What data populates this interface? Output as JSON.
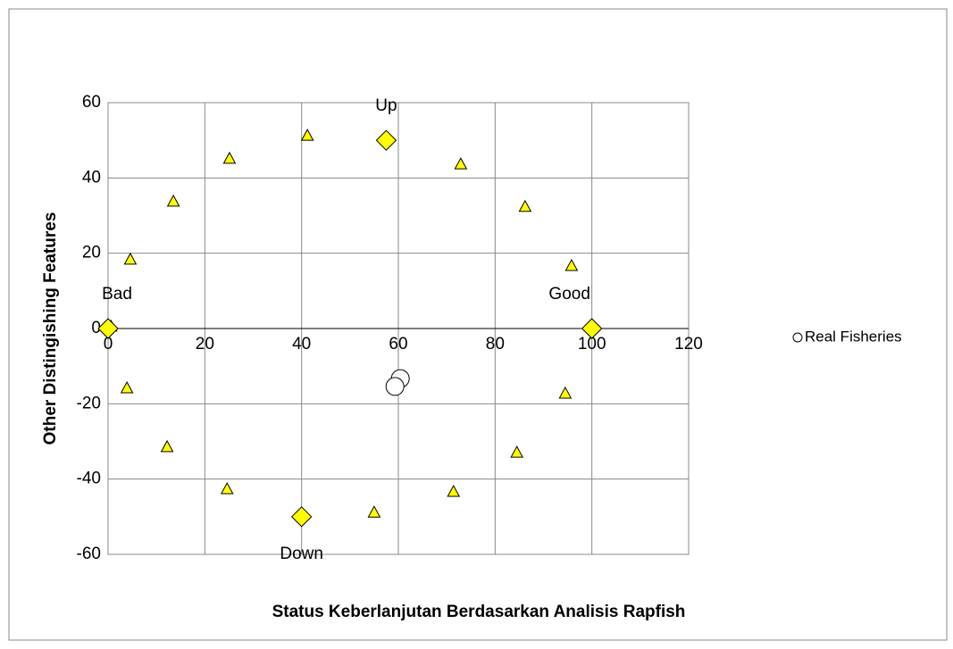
{
  "chart_data": {
    "type": "scatter",
    "xlabel": "Status Keberlanjutan Berdasarkan Analisis Rapfish",
    "ylabel": "Other Distingishing Features",
    "xlim": [
      0,
      120
    ],
    "xticks": [
      0,
      20,
      40,
      60,
      80,
      100,
      120
    ],
    "ylim": [
      -60,
      60
    ],
    "yticks": [
      60,
      40,
      20,
      0,
      -20,
      -40,
      -60
    ],
    "grid": true,
    "legend": "right",
    "series": [
      {
        "marker": "triangle",
        "color": "#ffff00",
        "x": [
          0.6,
          4.6,
          13.5,
          25.1,
          41.2,
          72.9,
          86.2,
          95.8,
          94.5,
          84.5,
          71.4,
          55.0,
          24.6,
          12.2,
          3.9
        ],
        "y": [
          0.5,
          18.3,
          33.7,
          45.1,
          51.2,
          43.6,
          32.3,
          16.6,
          -17.3,
          -33.0,
          -43.4,
          -48.9,
          -42.7,
          -31.5,
          -15.9
        ]
      },
      {
        "marker": "diamond",
        "color": "#ffff00",
        "x": [
          0,
          57.5,
          100,
          40
        ],
        "y": [
          0,
          50,
          0,
          -50
        ],
        "labels": [
          "Bad",
          "Up",
          "Good",
          "Down"
        ]
      },
      {
        "name": "Real Fisheries",
        "marker": "circle",
        "color": "#ffffff",
        "x": [
          60.4,
          59.3
        ],
        "y": [
          -13.3,
          -15.4
        ]
      }
    ]
  }
}
